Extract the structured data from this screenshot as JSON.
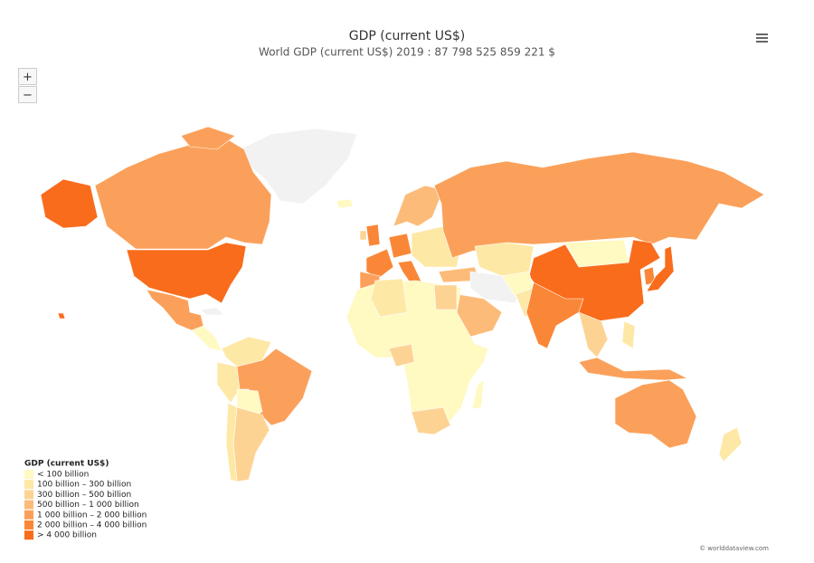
{
  "header": {
    "title": "GDP (current US$)",
    "subtitle": "World GDP (current US$) 2019 : 87 798 525 859 221 $"
  },
  "zoom": {
    "in": "+",
    "out": "−"
  },
  "legend": {
    "title": "GDP (current US$)",
    "items": [
      {
        "label": "< 100 billion",
        "color": "#fff9c2"
      },
      {
        "label": "100 billion – 300 billion",
        "color": "#fde8a6"
      },
      {
        "label": "300 billion – 500 billion",
        "color": "#fdd394"
      },
      {
        "label": "500 billion – 1 000 billion",
        "color": "#fcbb78"
      },
      {
        "label": "1 000 billion – 2 000 billion",
        "color": "#fba05a"
      },
      {
        "label": "2 000 billion – 4 000 billion",
        "color": "#fa8738"
      },
      {
        "label": "> 4 000 billion",
        "color": "#f96c1c"
      }
    ]
  },
  "credit": "© worlddataview.com"
}
